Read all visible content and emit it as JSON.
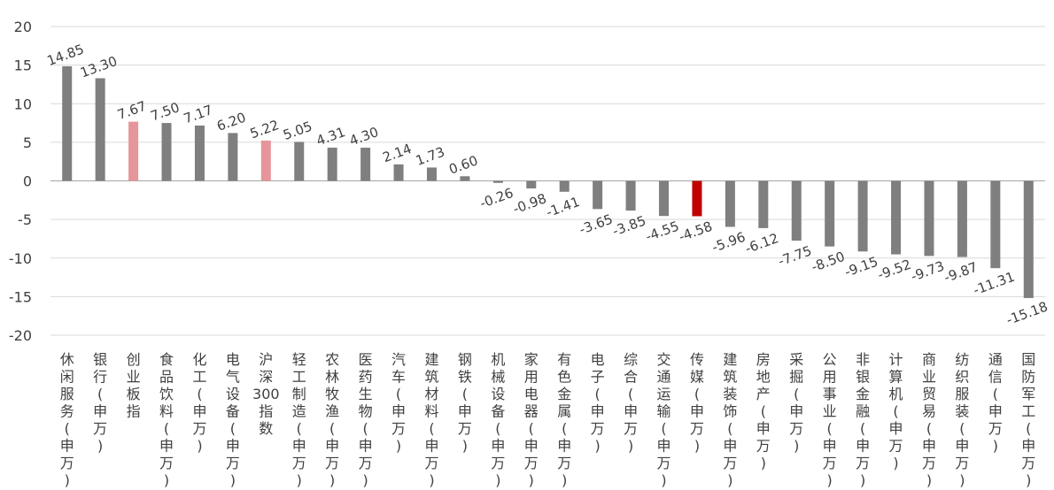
{
  "chart_data": {
    "type": "bar",
    "title": "",
    "xlabel": "",
    "ylabel": "",
    "ylim": [
      -20,
      20
    ],
    "yticks": [
      "20",
      "15",
      "10",
      "5",
      "0",
      "-5",
      "-10",
      "-15",
      "-20"
    ],
    "grid": true,
    "legend": "none",
    "categories": [
      "休闲服务(申万)",
      "银行(申万)",
      "创业板指",
      "食品饮料(申万)",
      "化工(申万)",
      "电气设备(申万)",
      "沪深300指数",
      "轻工制造(申万)",
      "农林牧渔(申万)",
      "医药生物(申万)",
      "汽车(申万)",
      "建筑材料(申万)",
      "钢铁(申万)",
      "机械设备(申万)",
      "家用电器(申万)",
      "有色金属(申万)",
      "电子(申万)",
      "综合(申万)",
      "交通运输(申万)",
      "传媒(申万)",
      "建筑装饰(申万)",
      "房地产(申万)",
      "采掘(申万)",
      "公用事业(申万)",
      "非银金融(申万)",
      "计算机(申万)",
      "商业贸易(申万)",
      "纺织服装(申万)",
      "通信(申万)",
      "国防军工(申万)"
    ],
    "values": [
      14.85,
      13.3,
      7.67,
      7.5,
      7.17,
      6.2,
      5.22,
      5.05,
      4.31,
      4.3,
      2.14,
      1.73,
      0.6,
      -0.26,
      -0.98,
      -1.41,
      -3.65,
      -3.85,
      -4.55,
      -4.58,
      -5.96,
      -6.12,
      -7.75,
      -8.5,
      -9.15,
      -9.52,
      -9.73,
      -9.87,
      -11.31,
      -15.18
    ],
    "value_labels": [
      "14.85",
      "13.30",
      "7.67",
      "7.50",
      "7.17",
      "6.20",
      "5.22",
      "5.05",
      "4.31",
      "4.30",
      "2.14",
      "1.73",
      "0.60",
      "-0.26",
      "-0.98",
      "-1.41",
      "-3.65",
      "-3.85",
      "-4.55",
      "-4.58",
      "-5.96",
      "-6.12",
      "-7.75",
      "-8.50",
      "-9.15",
      "-9.52",
      "-9.73",
      "-9.87",
      "-11.31",
      "-15.18"
    ],
    "colors": {
      "default": "#7f7f7f",
      "benchmark": "#e6959a",
      "highlight": "#c00000",
      "grid": "#d9d9d9",
      "text": "#404040"
    },
    "bar_color_keys": [
      "default",
      "default",
      "benchmark",
      "default",
      "default",
      "default",
      "benchmark",
      "default",
      "default",
      "default",
      "default",
      "default",
      "default",
      "default",
      "default",
      "default",
      "default",
      "default",
      "default",
      "highlight",
      "default",
      "default",
      "default",
      "default",
      "default",
      "default",
      "default",
      "default",
      "default",
      "default"
    ]
  }
}
